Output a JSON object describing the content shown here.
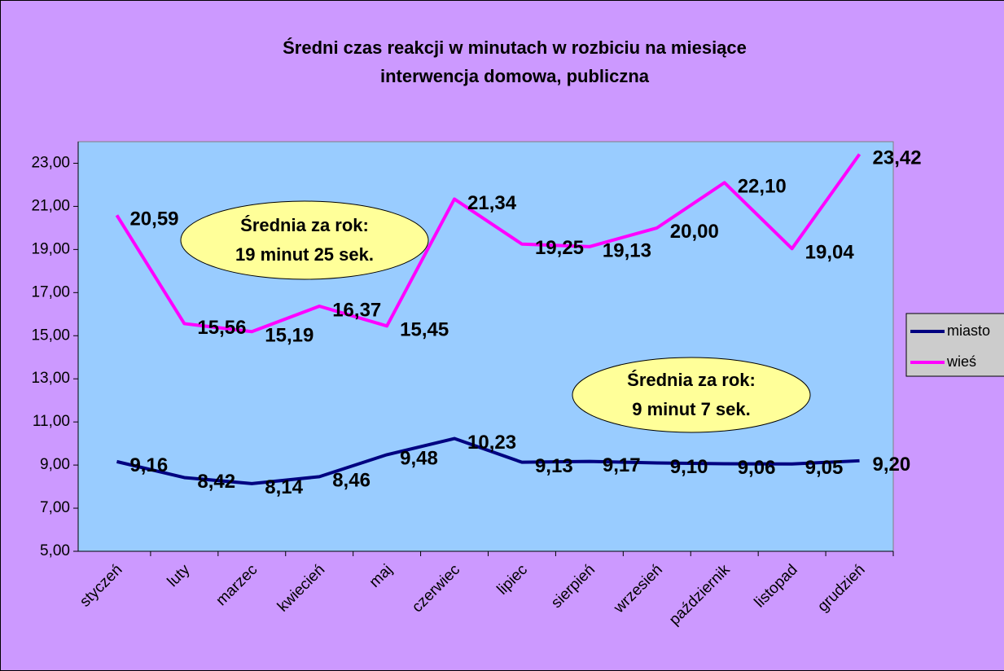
{
  "chart_data": {
    "type": "line",
    "title": [
      "Średni czas reakcji w minutach w rozbiciu na miesiące",
      "interwencja domowa, publiczna"
    ],
    "categories": [
      "styczeń",
      "luty",
      "marzec",
      "kwiecień",
      "maj",
      "czerwiec",
      "lipiec",
      "sierpień",
      "wrzesień",
      "październik",
      "listopad",
      "grudzień"
    ],
    "series": [
      {
        "name": "miasto",
        "color": "#000080",
        "values": [
          9.16,
          8.42,
          8.14,
          8.46,
          9.48,
          10.23,
          9.13,
          9.17,
          9.1,
          9.06,
          9.05,
          9.2
        ],
        "value_labels": [
          "9,16",
          "8,42",
          "8,14",
          "8,46",
          "9,48",
          "10,23",
          "9,13",
          "9,17",
          "9,10",
          "9,06",
          "9,05",
          "9,20"
        ]
      },
      {
        "name": "wieś",
        "color": "#ff00ff",
        "values": [
          20.59,
          15.56,
          15.19,
          16.37,
          15.45,
          21.34,
          19.25,
          19.13,
          20.0,
          22.1,
          19.04,
          23.42
        ],
        "value_labels": [
          "20,59",
          "15,56",
          "15,19",
          "16,37",
          "15,45",
          "21,34",
          "19,25",
          "19,13",
          "20,00",
          "22,10",
          "19,04",
          "23,42"
        ]
      }
    ],
    "ylim": [
      5,
      24
    ],
    "yticks": [
      {
        "value": 5,
        "label": "5,00"
      },
      {
        "value": 7,
        "label": "7,00"
      },
      {
        "value": 9,
        "label": "9,00"
      },
      {
        "value": 11,
        "label": "11,00"
      },
      {
        "value": 13,
        "label": "13,00"
      },
      {
        "value": 15,
        "label": "15,00"
      },
      {
        "value": 17,
        "label": "17,00"
      },
      {
        "value": 19,
        "label": "19,00"
      },
      {
        "value": 21,
        "label": "21,00"
      },
      {
        "value": 23,
        "label": "23,00"
      }
    ],
    "legend": "right",
    "annotations": [
      {
        "lines": [
          "Średnia za rok:",
          "19 minut 25 sek."
        ]
      },
      {
        "lines": [
          "Średnia za rok:",
          "9 minut 7 sek."
        ]
      }
    ]
  }
}
